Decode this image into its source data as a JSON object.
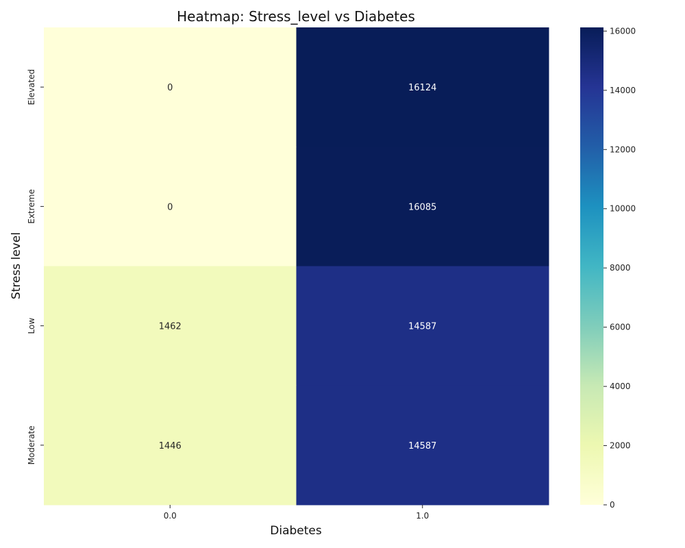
{
  "chart_data": {
    "type": "heatmap",
    "title": "Heatmap: Stress_level vs Diabetes",
    "xlabel": "Diabetes",
    "ylabel": "Stress level",
    "x_categories": [
      "0.0",
      "1.0"
    ],
    "y_categories": [
      "Elevated",
      "Extreme",
      "Low",
      "Moderate"
    ],
    "values": [
      [
        0,
        16124
      ],
      [
        0,
        16085
      ],
      [
        1462,
        14587
      ],
      [
        1446,
        14587
      ]
    ],
    "colormap": "YlGnBu",
    "colorbar": {
      "range": [
        0,
        16124
      ],
      "ticks": [
        0,
        2000,
        4000,
        6000,
        8000,
        10000,
        12000,
        14000,
        16000
      ],
      "tick_labels": [
        "0",
        "2000",
        "4000",
        "6000",
        "8000",
        "10000",
        "12000",
        "14000",
        "16000"
      ]
    },
    "annotated": true,
    "grid": false
  }
}
